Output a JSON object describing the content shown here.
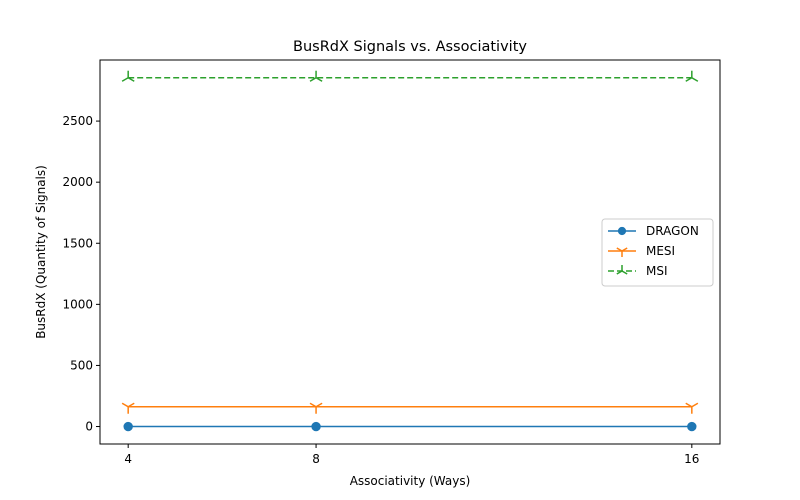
{
  "chart_data": {
    "type": "line",
    "title": "BusRdX Signals vs. Associativity",
    "xlabel": "Associativity (Ways)",
    "ylabel": "BusRdX (Quantity of Signals)",
    "x": [
      4,
      8,
      16
    ],
    "xticks": [
      "4",
      "8",
      "16"
    ],
    "yticks": [
      "0",
      "500",
      "1000",
      "1500",
      "2000",
      "2500"
    ],
    "xlim": [
      3.4,
      16.6
    ],
    "ylim": [
      -143,
      3000
    ],
    "grid": false,
    "legend_position": "center-right",
    "series": [
      {
        "name": "DRAGON",
        "values": [
          0,
          0,
          0
        ],
        "color": "#1f77b4",
        "marker": "circle",
        "linestyle": "solid"
      },
      {
        "name": "MESI",
        "values": [
          162,
          162,
          162
        ],
        "color": "#ff7f0e",
        "marker": "tri-down",
        "linestyle": "solid"
      },
      {
        "name": "MSI",
        "values": [
          2855,
          2855,
          2855
        ],
        "color": "#2ca02c",
        "marker": "tri-up",
        "linestyle": "dashed"
      }
    ]
  }
}
